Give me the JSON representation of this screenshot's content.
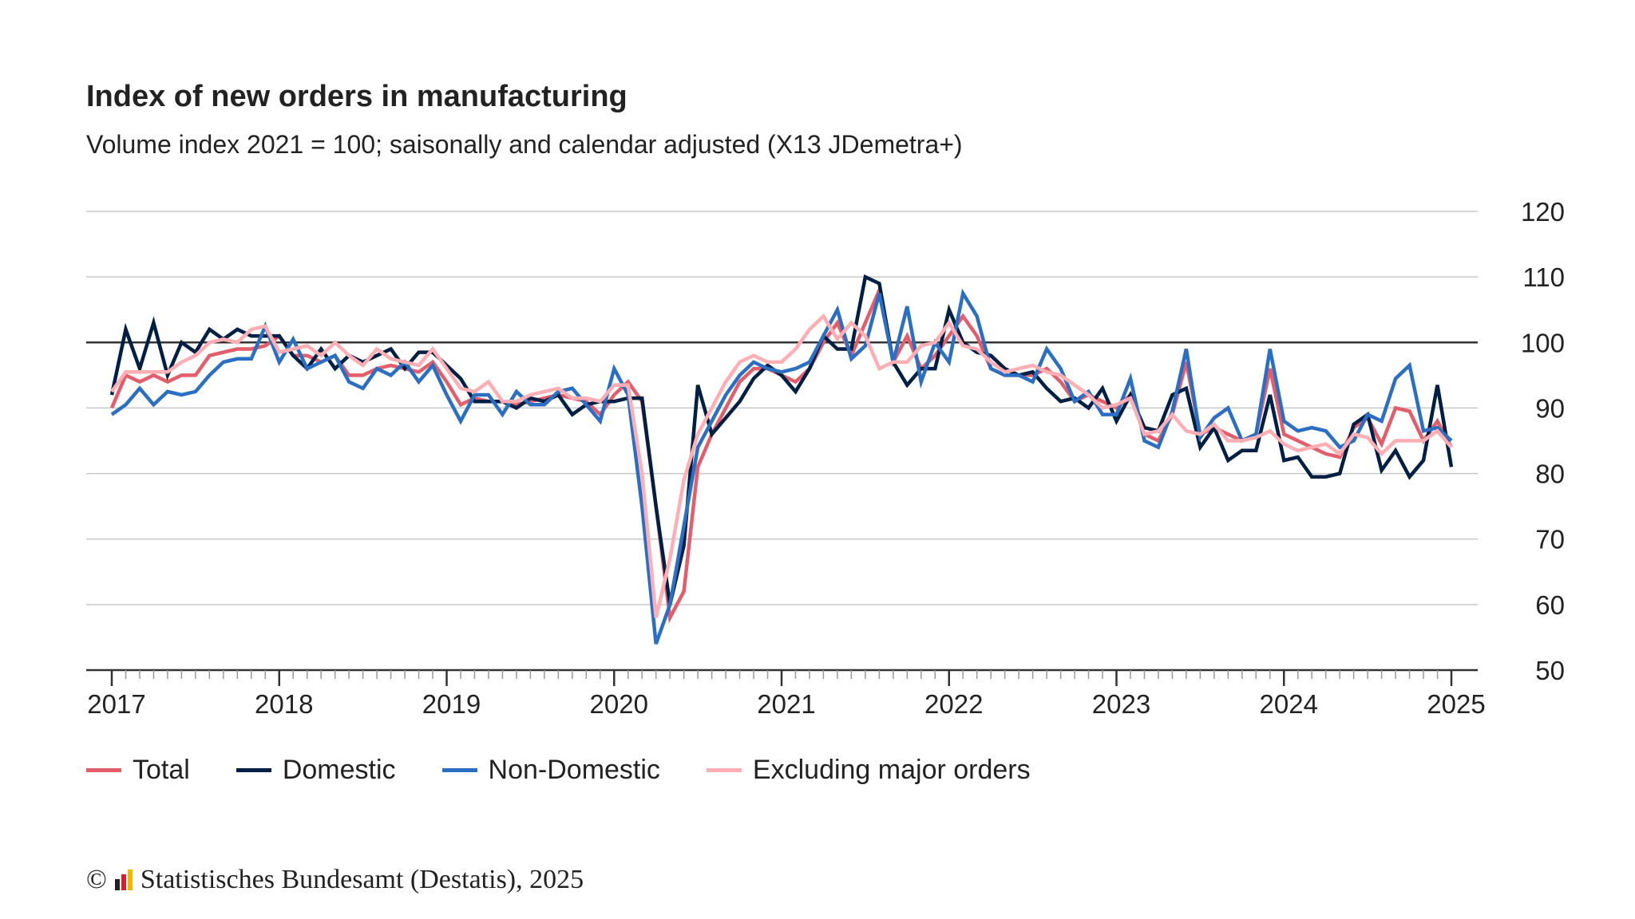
{
  "title": "Index of new orders in manufacturing",
  "subtitle": "Volume index 2021 = 100; saisonally and calendar adjusted (X13 JDemetra+)",
  "footer": {
    "copyright": "©",
    "text": "Statistisches Bundesamt (Destatis), 2025"
  },
  "chart_data": {
    "type": "line",
    "title": "Index of new orders in manufacturing",
    "subtitle": "Volume index 2021 = 100; saisonally and calendar adjusted (X13 JDemetra+)",
    "x_start": "2017-01",
    "x_end": "2025-01",
    "frequency": "monthly",
    "x_tick_labels": [
      "2017",
      "2018",
      "2019",
      "2020",
      "2021",
      "2022",
      "2023",
      "2024",
      "2025"
    ],
    "y_tick_labels": [
      "120",
      "110",
      "100",
      "90",
      "80",
      "70",
      "60",
      "50"
    ],
    "ylim": [
      50,
      120
    ],
    "reference_line": 100,
    "grid": true,
    "y_axis_side": "right",
    "legend_position": "bottom",
    "series": [
      {
        "name": "Total",
        "color": "#e35d6a",
        "values": [
          90,
          95,
          94,
          95,
          94,
          95,
          95,
          98,
          98.5,
          99,
          99,
          99.5,
          101,
          98,
          98,
          97,
          98,
          95,
          95,
          96,
          96.5,
          96,
          95.5,
          97,
          94,
          90.5,
          91.5,
          91,
          91,
          90.5,
          91,
          91.5,
          92,
          91.5,
          91,
          89,
          92,
          94,
          91,
          75,
          58,
          62,
          81,
          86,
          90,
          94,
          96,
          96,
          95,
          94,
          96,
          100,
          103,
          98,
          103,
          108,
          97,
          101,
          96,
          98,
          101,
          104,
          101,
          96,
          95,
          95,
          95,
          96,
          94,
          91,
          92,
          91,
          90,
          92,
          86,
          85,
          89,
          97,
          86,
          87,
          86,
          85,
          86,
          96,
          86,
          85,
          84,
          83,
          82.5,
          87,
          88.5,
          84.5,
          90,
          89.5,
          85,
          88,
          84
        ]
      },
      {
        "name": "Domestic",
        "color": "#001f44",
        "values": [
          92,
          102,
          96,
          103,
          95,
          100,
          98.5,
          102,
          100.5,
          102,
          101,
          101,
          101,
          98,
          96,
          99,
          96,
          98,
          97,
          98,
          99,
          96,
          98.5,
          98.5,
          96.5,
          94.5,
          91,
          91,
          91,
          90,
          91.5,
          91,
          92,
          89,
          90.5,
          91,
          91,
          91.5,
          91.5,
          75,
          60,
          69,
          93.5,
          86,
          88.5,
          91,
          94.5,
          96.5,
          95,
          92.5,
          96,
          101,
          99,
          99,
          110,
          109,
          97,
          93.5,
          96,
          96,
          105,
          100,
          98.5,
          98,
          96,
          95,
          95.5,
          93,
          91,
          91.5,
          90,
          93,
          88,
          92,
          87,
          86.5,
          92,
          93,
          84,
          87,
          82,
          83.5,
          83.5,
          92,
          82,
          82.5,
          79.5,
          79.5,
          80,
          87.5,
          89,
          80.5,
          83.5,
          79.5,
          82,
          93.5,
          81
        ]
      },
      {
        "name": "Non-Domestic",
        "color": "#2a6fc4",
        "values": [
          89,
          90.5,
          93,
          90.5,
          92.5,
          92,
          92.5,
          95,
          97,
          97.5,
          97.5,
          102.5,
          97,
          100.5,
          96,
          97,
          98,
          94,
          93,
          96,
          95,
          97,
          94,
          96.5,
          92,
          88,
          92,
          92,
          89,
          92.5,
          90.5,
          90.5,
          92.5,
          93,
          90.5,
          88,
          96,
          92,
          75,
          54,
          60,
          72,
          84,
          88,
          92,
          95,
          97,
          96,
          95.5,
          96,
          97,
          101,
          105,
          97.5,
          99.5,
          107.5,
          97,
          105.5,
          94,
          100,
          97,
          107.5,
          104,
          96,
          95,
          95,
          94,
          99,
          96,
          91,
          92.5,
          89,
          89,
          94.5,
          85,
          84,
          89.5,
          99,
          85.5,
          88.5,
          90,
          85,
          86,
          99,
          88,
          86.5,
          87,
          86.5,
          84,
          85,
          89,
          88,
          94.5,
          96.5,
          86.5,
          87,
          85
        ]
      },
      {
        "name": "Excluding major orders",
        "color": "#ffafb4",
        "values": [
          92.5,
          95.5,
          95.5,
          95.5,
          95.5,
          97,
          98,
          100,
          100.5,
          100,
          102,
          102.5,
          98.5,
          99,
          99.5,
          98,
          100,
          98,
          96.5,
          99,
          97.5,
          97,
          96.5,
          99,
          96,
          93,
          92.5,
          94,
          91,
          91,
          92,
          92.5,
          93,
          91.5,
          91.5,
          91,
          93.5,
          93.5,
          80,
          58,
          67,
          79,
          86,
          90,
          94,
          97,
          98,
          97,
          97,
          99,
          102,
          104,
          100.5,
          103,
          101,
          96,
          97,
          97,
          99.5,
          100,
          103,
          99.5,
          99,
          97,
          95.5,
          96,
          96.5,
          95.5,
          95,
          93.5,
          92,
          90,
          90.5,
          91.5,
          86,
          86.5,
          89,
          86.5,
          86,
          87.5,
          85,
          85,
          85.5,
          86.5,
          84.5,
          83.5,
          84,
          84.5,
          83,
          86,
          85.5,
          83,
          85,
          85,
          85,
          86.5,
          84
        ]
      }
    ]
  }
}
